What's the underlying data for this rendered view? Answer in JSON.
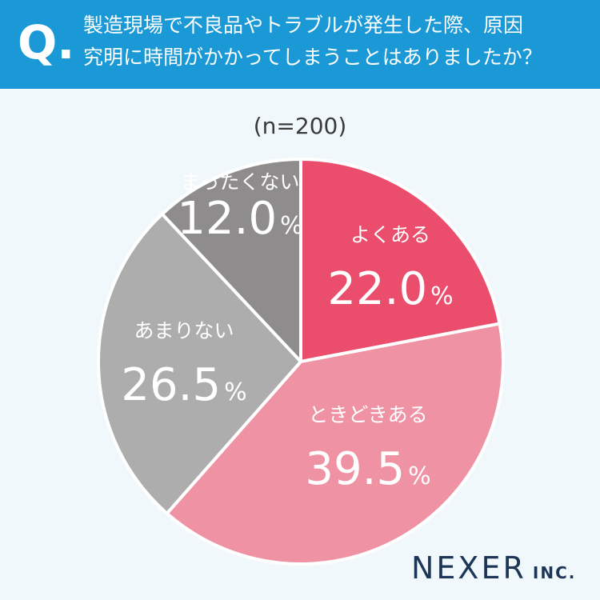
{
  "header": {
    "q_mark": "Q.",
    "question_line1": "製造現場で不良品やトラブルが発生した際、原因",
    "question_line2": "究明に時間がかかってしまうことはありましたか？"
  },
  "sample_size": "(n=200)",
  "chart_data": {
    "type": "pie",
    "slices": [
      {
        "label": "よくある",
        "value": 22.0,
        "value_text": "22.0",
        "unit": "%",
        "color": "#eb4e6d"
      },
      {
        "label": "ときどきある",
        "value": 39.5,
        "value_text": "39.5",
        "unit": "%",
        "color": "#ef93a4"
      },
      {
        "label": "あまりない",
        "value": 26.5,
        "value_text": "26.5",
        "unit": "%",
        "color": "#adadad"
      },
      {
        "label": "まったくない",
        "value": 12.0,
        "value_text": "12.0",
        "unit": "%",
        "color": "#8e8c8c"
      }
    ]
  },
  "logo": {
    "brand": "NEXER",
    "suffix": "INC."
  }
}
